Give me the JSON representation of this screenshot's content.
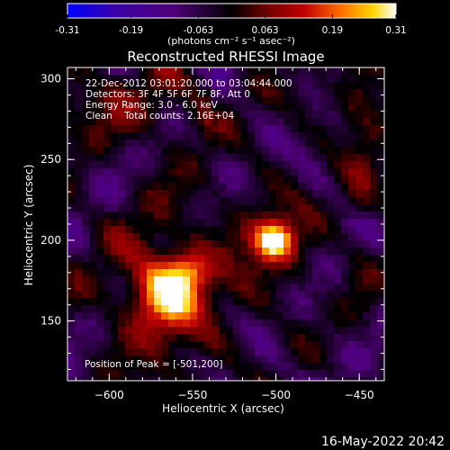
{
  "colorbar": {
    "ticks": [
      "-0.31",
      "-0.19",
      "-0.063",
      "0.063",
      "0.19",
      "0.31"
    ],
    "tick_values": [
      -0.31,
      -0.19,
      -0.063,
      0.063,
      0.19,
      0.31
    ],
    "range": [
      -0.31,
      0.31
    ],
    "unit_label": "(photons cm⁻² s⁻¹ asec⁻²)",
    "colors": [
      "#0000ff",
      "#3b00a8",
      "#50007a",
      "#000000",
      "#6a0000",
      "#c00000",
      "#ff6a00",
      "#ffd600",
      "#ffffff"
    ]
  },
  "plot": {
    "title": "Reconstructed RHESSI Image",
    "info_lines": [
      "22-Dec-2012 03:01:20.000 to 03:04:44.000",
      "Detectors: 3F 4F 5F 6F 7F 8F, Att 0",
      "Energy Range: 3.0 - 6.0 keV",
      "Clean    Total counts: 2.16E+04"
    ],
    "peak_label": "Position of Peak = [-501,200]",
    "xlabel": "Heliocentric X (arcsec)",
    "ylabel": "Heliocentric Y (arcsec)",
    "x_ticks": [
      "−600",
      "−550",
      "−500",
      "−450"
    ],
    "x_tick_values": [
      -600,
      -550,
      -500,
      -450
    ],
    "y_ticks": [
      "150",
      "200",
      "250",
      "300"
    ],
    "y_tick_values": [
      150,
      200,
      250,
      300
    ],
    "xlim": [
      -625,
      -435
    ],
    "ylim": [
      113,
      307
    ],
    "sources": [
      {
        "x": -565,
        "y": 168,
        "peak": 0.26
      },
      {
        "x": -501,
        "y": 200,
        "peak": 0.31
      }
    ]
  },
  "footer": {
    "timestamp": "16-May-2022 20:42"
  }
}
